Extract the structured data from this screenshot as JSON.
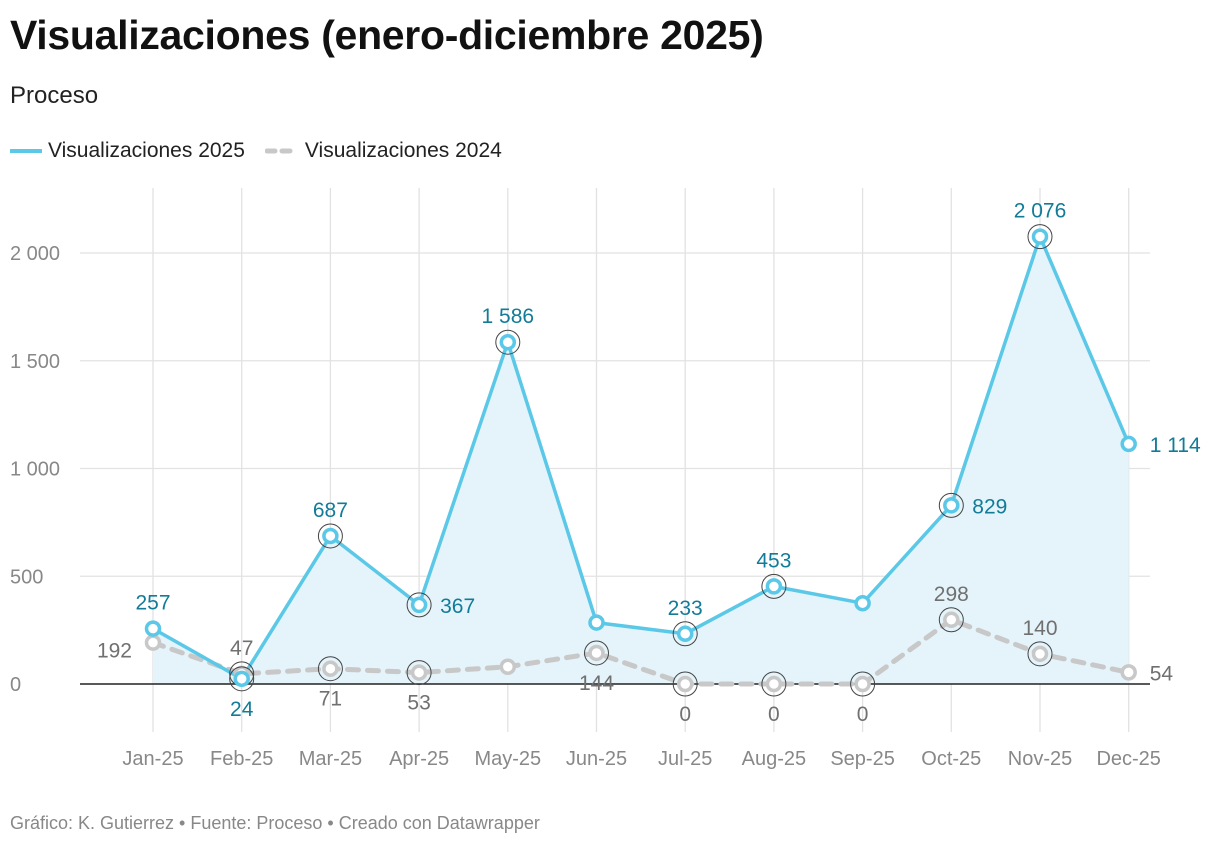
{
  "title": "Visualizaciones (enero-diciembre 2025)",
  "subtitle": "Proceso",
  "footer": "Gráfico: K. Gutierrez • Fuente: Proceso • Creado con Datawrapper",
  "colors": {
    "series_2025": "#5bc8e8",
    "series_2025_label": "#127c98",
    "series_2024": "#c8c8c8",
    "series_2024_label": "#707070",
    "area_fill": "#e4f4fa",
    "grid": "#e2e2e2",
    "axis": "#222222"
  },
  "chart_data": {
    "type": "line",
    "categories": [
      "Jan-25",
      "Feb-25",
      "Mar-25",
      "Apr-25",
      "May-25",
      "Jun-25",
      "Jul-25",
      "Aug-25",
      "Sep-25",
      "Oct-25",
      "Nov-25",
      "Dec-25"
    ],
    "yticks": [
      0,
      500,
      1000,
      1500,
      2000
    ],
    "ytick_labels": [
      "0",
      "500",
      "1 000",
      "1 500",
      "2 000"
    ],
    "ylim": [
      0,
      2300
    ],
    "series": [
      {
        "name": "Visualizaciones 2025",
        "style": "solid-area",
        "values": [
          257,
          24,
          687,
          367,
          1586,
          285,
          233,
          453,
          375,
          829,
          2076,
          1114
        ],
        "labels": [
          "257",
          "24",
          "687",
          "367",
          "1 586",
          "",
          "233",
          "453",
          "",
          "829",
          "2 076",
          "1 114"
        ],
        "label_pos": [
          "above",
          "below",
          "above",
          "right",
          "above",
          "none",
          "above",
          "above",
          "none",
          "right",
          "above",
          "right"
        ],
        "highlighted": [
          false,
          true,
          true,
          true,
          true,
          false,
          true,
          true,
          false,
          true,
          true,
          false
        ]
      },
      {
        "name": "Visualizaciones 2024",
        "style": "dashed",
        "values": [
          192,
          47,
          71,
          53,
          80,
          144,
          0,
          0,
          0,
          298,
          140,
          54
        ],
        "labels": [
          "192",
          "47",
          "71",
          "53",
          "",
          "144",
          "0",
          "0",
          "0",
          "298",
          "140",
          "54"
        ],
        "label_pos": [
          "left",
          "above",
          "below",
          "below",
          "none",
          "below",
          "below",
          "below",
          "below",
          "above",
          "above",
          "right"
        ],
        "highlighted": [
          false,
          true,
          true,
          true,
          false,
          true,
          true,
          true,
          true,
          true,
          true,
          false
        ]
      }
    ]
  }
}
